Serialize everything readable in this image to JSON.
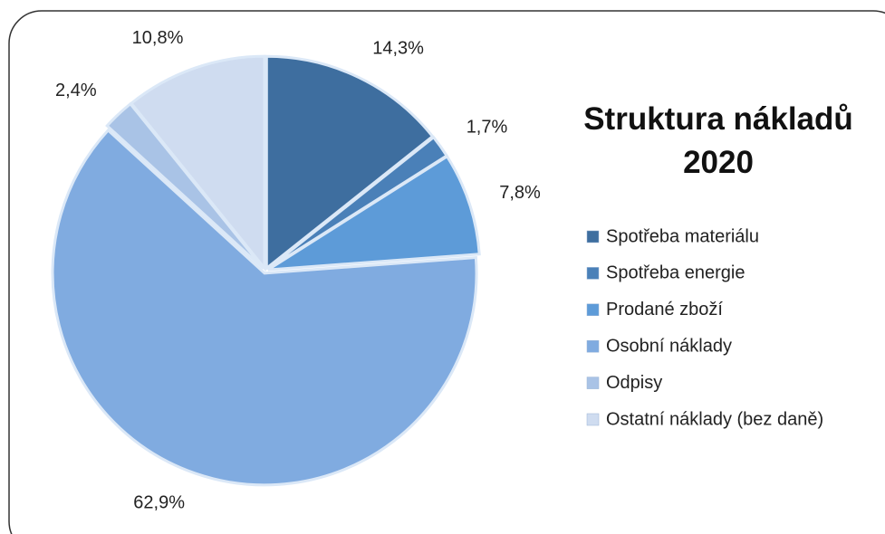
{
  "chart_data": {
    "type": "pie",
    "title": "Struktura nákladů 2020",
    "categories": [
      "Spotřeba materiálu",
      "Spotřeba energie",
      "Prodané zboží",
      "Osobní náklady",
      "Odpisy",
      "Ostatní náklady (bez daně)"
    ],
    "values": [
      14.3,
      1.7,
      7.8,
      62.9,
      2.4,
      10.8
    ],
    "value_labels": [
      "14,3%",
      "1,7%",
      "7,8%",
      "62,9%",
      "2,4%",
      "10,8%"
    ],
    "colors": [
      "#3e6e9f",
      "#4a80b8",
      "#5d9bd8",
      "#80abe0",
      "#a9c3e6",
      "#cfdcf0"
    ],
    "legend": "right"
  }
}
